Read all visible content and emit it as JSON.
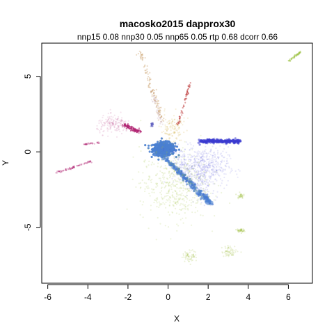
{
  "chart_data": {
    "type": "scatter",
    "title": "macosko2015 dapprox30",
    "subtitle": "nnp15 0.08 nnp30 0.05 nnp65 0.05 rtp 0.68 dcorr 0.66",
    "xlabel": "X",
    "ylabel": "Y",
    "xlim": [
      -6.3,
      7.2
    ],
    "ylim": [
      -8.7,
      7.2
    ],
    "xticks": [
      -6,
      -4,
      -2,
      0,
      2,
      4,
      6
    ],
    "yticks": [
      -5,
      0,
      5
    ],
    "grid": false,
    "legend": "none",
    "clusters": [
      {
        "color": "#4a7fd0",
        "alpha": 0.9,
        "count": 520,
        "shape": "blob",
        "center": [
          -0.2,
          0.2
        ],
        "spread": [
          0.45,
          0.35
        ]
      },
      {
        "color": "#4a7fd0",
        "alpha": 0.6,
        "count": 260,
        "shape": "line",
        "from": [
          -0.3,
          -0.2
        ],
        "to": [
          2.1,
          -3.4
        ],
        "width": 0.15
      },
      {
        "color": "#3a3ad0",
        "alpha": 0.55,
        "count": 260,
        "shape": "line",
        "from": [
          1.6,
          0.7
        ],
        "to": [
          3.6,
          0.7
        ],
        "width": 0.12
      },
      {
        "color": "#4040d8",
        "alpha": 0.12,
        "count": 500,
        "shape": "blob",
        "center": [
          1.8,
          -1.0
        ],
        "spread": [
          1.0,
          1.1
        ]
      },
      {
        "color": "#4040d8",
        "alpha": 0.15,
        "count": 180,
        "shape": "line",
        "from": [
          0.4,
          0.3
        ],
        "to": [
          2.0,
          -3.2
        ],
        "width": 0.6
      },
      {
        "color": "#a0c040",
        "alpha": 0.18,
        "count": 500,
        "shape": "blob",
        "center": [
          0.3,
          -2.2
        ],
        "spread": [
          1.4,
          2.0
        ]
      },
      {
        "color": "#a0c040",
        "alpha": 0.2,
        "count": 60,
        "shape": "blob",
        "center": [
          1.1,
          -6.9
        ],
        "spread": [
          0.3,
          0.3
        ]
      },
      {
        "color": "#a0c040",
        "alpha": 0.2,
        "count": 60,
        "shape": "blob",
        "center": [
          3.1,
          -6.6
        ],
        "spread": [
          0.35,
          0.3
        ]
      },
      {
        "color": "#a0c040",
        "alpha": 0.25,
        "count": 40,
        "shape": "blob",
        "center": [
          3.6,
          -5.2
        ],
        "spread": [
          0.15,
          0.1
        ]
      },
      {
        "color": "#a0c040",
        "alpha": 0.25,
        "count": 30,
        "shape": "blob",
        "center": [
          3.6,
          -2.9
        ],
        "spread": [
          0.12,
          0.15
        ]
      },
      {
        "color": "#b02070",
        "alpha": 0.5,
        "count": 140,
        "shape": "line",
        "from": [
          -2.2,
          1.8
        ],
        "to": [
          -1.4,
          1.3
        ],
        "width": 0.13
      },
      {
        "color": "#b02070",
        "alpha": 0.12,
        "count": 160,
        "shape": "blob",
        "center": [
          -2.7,
          1.8
        ],
        "spread": [
          0.7,
          0.5
        ]
      },
      {
        "color": "#b02070",
        "alpha": 0.35,
        "count": 70,
        "shape": "line",
        "from": [
          -5.6,
          -1.4
        ],
        "to": [
          -3.8,
          -0.6
        ],
        "width": 0.06
      },
      {
        "color": "#b02070",
        "alpha": 0.3,
        "count": 35,
        "shape": "line",
        "from": [
          -4.2,
          0.5
        ],
        "to": [
          -3.4,
          0.6
        ],
        "width": 0.04
      },
      {
        "color": "#c04040",
        "alpha": 0.5,
        "count": 60,
        "shape": "line",
        "from": [
          1.1,
          4.6
        ],
        "to": [
          0.5,
          1.8
        ],
        "width": 0.06
      },
      {
        "color": "#b07020",
        "alpha": 0.25,
        "count": 110,
        "shape": "line",
        "from": [
          -1.4,
          6.6
        ],
        "to": [
          -0.3,
          2.0
        ],
        "width": 0.15
      },
      {
        "color": "#d0b040",
        "alpha": 0.2,
        "count": 120,
        "shape": "blob",
        "center": [
          0.2,
          1.5
        ],
        "spread": [
          0.5,
          0.8
        ]
      },
      {
        "color": "#9bc040",
        "alpha": 0.45,
        "count": 45,
        "shape": "line",
        "from": [
          6.0,
          6.0
        ],
        "to": [
          6.6,
          6.6
        ],
        "width": 0.05
      },
      {
        "color": "#c0a0b0",
        "alpha": 0.25,
        "count": 40,
        "shape": "line",
        "from": [
          -0.9,
          4.3
        ],
        "to": [
          -0.3,
          1.8
        ],
        "width": 0.12
      },
      {
        "color": "#6060c0",
        "alpha": 0.5,
        "count": 25,
        "shape": "blob",
        "center": [
          -0.8,
          1.8
        ],
        "spread": [
          0.05,
          0.1
        ]
      }
    ]
  }
}
